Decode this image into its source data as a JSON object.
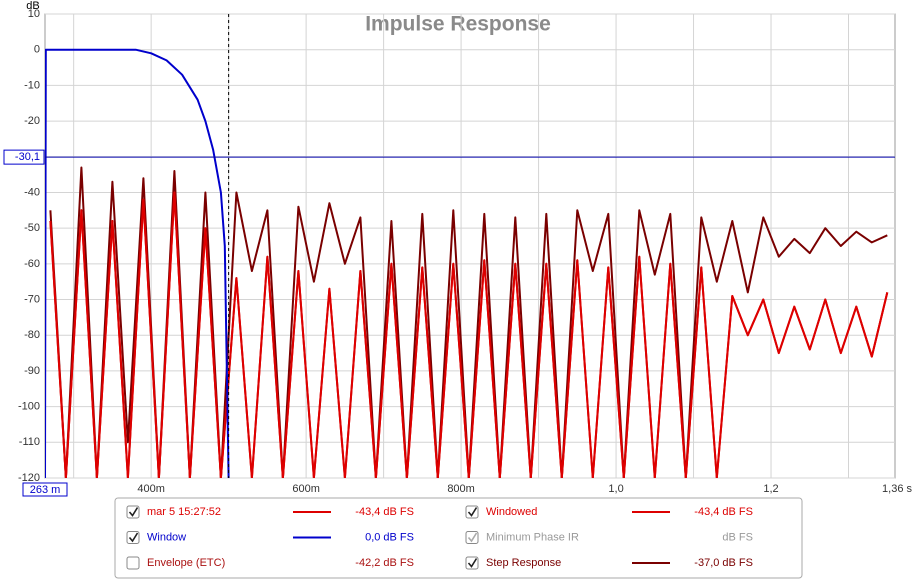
{
  "chart_data": {
    "type": "line",
    "title": "Impulse Response",
    "y_unit": "dB",
    "xlim": [
      0.263,
      1.36
    ],
    "ylim": [
      -120,
      10
    ],
    "xticks": [
      {
        "value": 0.263,
        "label": "263 m"
      },
      {
        "value": 0.4,
        "label": "400m"
      },
      {
        "value": 0.6,
        "label": "600m"
      },
      {
        "value": 0.8,
        "label": "800m"
      },
      {
        "value": 1.0,
        "label": "1,0"
      },
      {
        "value": 1.2,
        "label": "1,2"
      },
      {
        "value": 1.36,
        "label": "1,36 s"
      }
    ],
    "x_minor_ticks": [
      0.3,
      0.5,
      0.7,
      0.9,
      1.1,
      1.3
    ],
    "yticks": [
      10,
      0,
      -10,
      -20,
      -30,
      -40,
      -50,
      -60,
      -70,
      -80,
      -90,
      -100,
      -110,
      -120
    ],
    "grid": true,
    "x_cursor": 0.5,
    "y_cursor": {
      "value": -30.1,
      "label": "-30,1"
    },
    "x": [
      0.27,
      0.29,
      0.31,
      0.33,
      0.35,
      0.37,
      0.39,
      0.41,
      0.43,
      0.45,
      0.47,
      0.49,
      0.51,
      0.53,
      0.55,
      0.57,
      0.59,
      0.61,
      0.63,
      0.65,
      0.67,
      0.69,
      0.71,
      0.73,
      0.75,
      0.77,
      0.79,
      0.81,
      0.83,
      0.85,
      0.87,
      0.89,
      0.91,
      0.93,
      0.95,
      0.97,
      0.99,
      1.01,
      1.03,
      1.05,
      1.07,
      1.09,
      1.11,
      1.13,
      1.15,
      1.17,
      1.19,
      1.21,
      1.23,
      1.25,
      1.27,
      1.29,
      1.31,
      1.33,
      1.35
    ],
    "series": [
      {
        "name": "mar 5 15:27:52",
        "color": "#dd0000",
        "checked": true,
        "readout": "-43,4 dB FS",
        "values": [
          -48,
          -120,
          -45,
          -120,
          -48,
          -120,
          -42,
          -120,
          -40,
          -120,
          -50,
          -120,
          -64,
          -120,
          -58,
          -120,
          -62,
          -120,
          -67,
          -120,
          -62,
          -120,
          -60,
          -120,
          -61,
          -120,
          -60,
          -120,
          -59,
          -120,
          -60,
          -120,
          -60,
          -120,
          -59,
          -120,
          -61,
          -120,
          -58,
          -120,
          -60,
          -120,
          -61,
          -120,
          -69,
          -80,
          -70,
          -85,
          -72,
          -84,
          -70,
          -85,
          -72,
          -86,
          -68
        ]
      },
      {
        "name": "Window",
        "color": "#0000cc",
        "checked": true,
        "readout": "0,0 dB FS",
        "x": [
          0.263,
          0.264,
          0.38,
          0.4,
          0.42,
          0.44,
          0.46,
          0.47,
          0.48,
          0.49,
          0.495,
          0.5
        ],
        "values": [
          -120,
          0,
          0,
          -1,
          -3,
          -7,
          -14,
          -20,
          -28,
          -40,
          -55,
          -120
        ]
      },
      {
        "name": "Envelope (ETC)",
        "color": "#aa1111",
        "checked": false,
        "readout": "-42,2 dB FS"
      },
      {
        "name": "Windowed",
        "color": "#dd0000",
        "checked": true,
        "readout": "-43,4 dB FS",
        "values": [
          -48,
          -120,
          -45,
          -120,
          -48,
          -120,
          -42,
          -120,
          -40,
          -120,
          -50,
          -120,
          -64,
          -120,
          -58,
          -120,
          -62,
          -120,
          -67,
          -120,
          -62,
          -120,
          -60,
          -120,
          -61,
          -120,
          -60,
          -120,
          -59,
          -120,
          -60,
          -120,
          -60,
          -120,
          -59,
          -120,
          -61,
          -120,
          -58,
          -120,
          -60,
          -120,
          -61,
          -120,
          -69,
          -80,
          -70,
          -85,
          -72,
          -84,
          -70,
          -85,
          -72,
          -86,
          -68
        ]
      },
      {
        "name": "Minimum Phase IR",
        "color": "#999999",
        "checked": true,
        "disabled": true,
        "readout": "dB FS"
      },
      {
        "name": "Step Response",
        "color": "#7a0000",
        "checked": true,
        "readout": "-37,0 dB FS",
        "values": [
          -45,
          -120,
          -33,
          -120,
          -37,
          -110,
          -36,
          -120,
          -34,
          -120,
          -40,
          -120,
          -40,
          -62,
          -45,
          -120,
          -44,
          -65,
          -43,
          -60,
          -47,
          -120,
          -48,
          -120,
          -46,
          -120,
          -45,
          -120,
          -46,
          -120,
          -47,
          -120,
          -46,
          -120,
          -45,
          -62,
          -46,
          -120,
          -45,
          -63,
          -46,
          -120,
          -47,
          -65,
          -48,
          -68,
          -47,
          -58,
          -53,
          -57,
          -50,
          -55,
          -51,
          -54,
          -52
        ]
      }
    ]
  }
}
